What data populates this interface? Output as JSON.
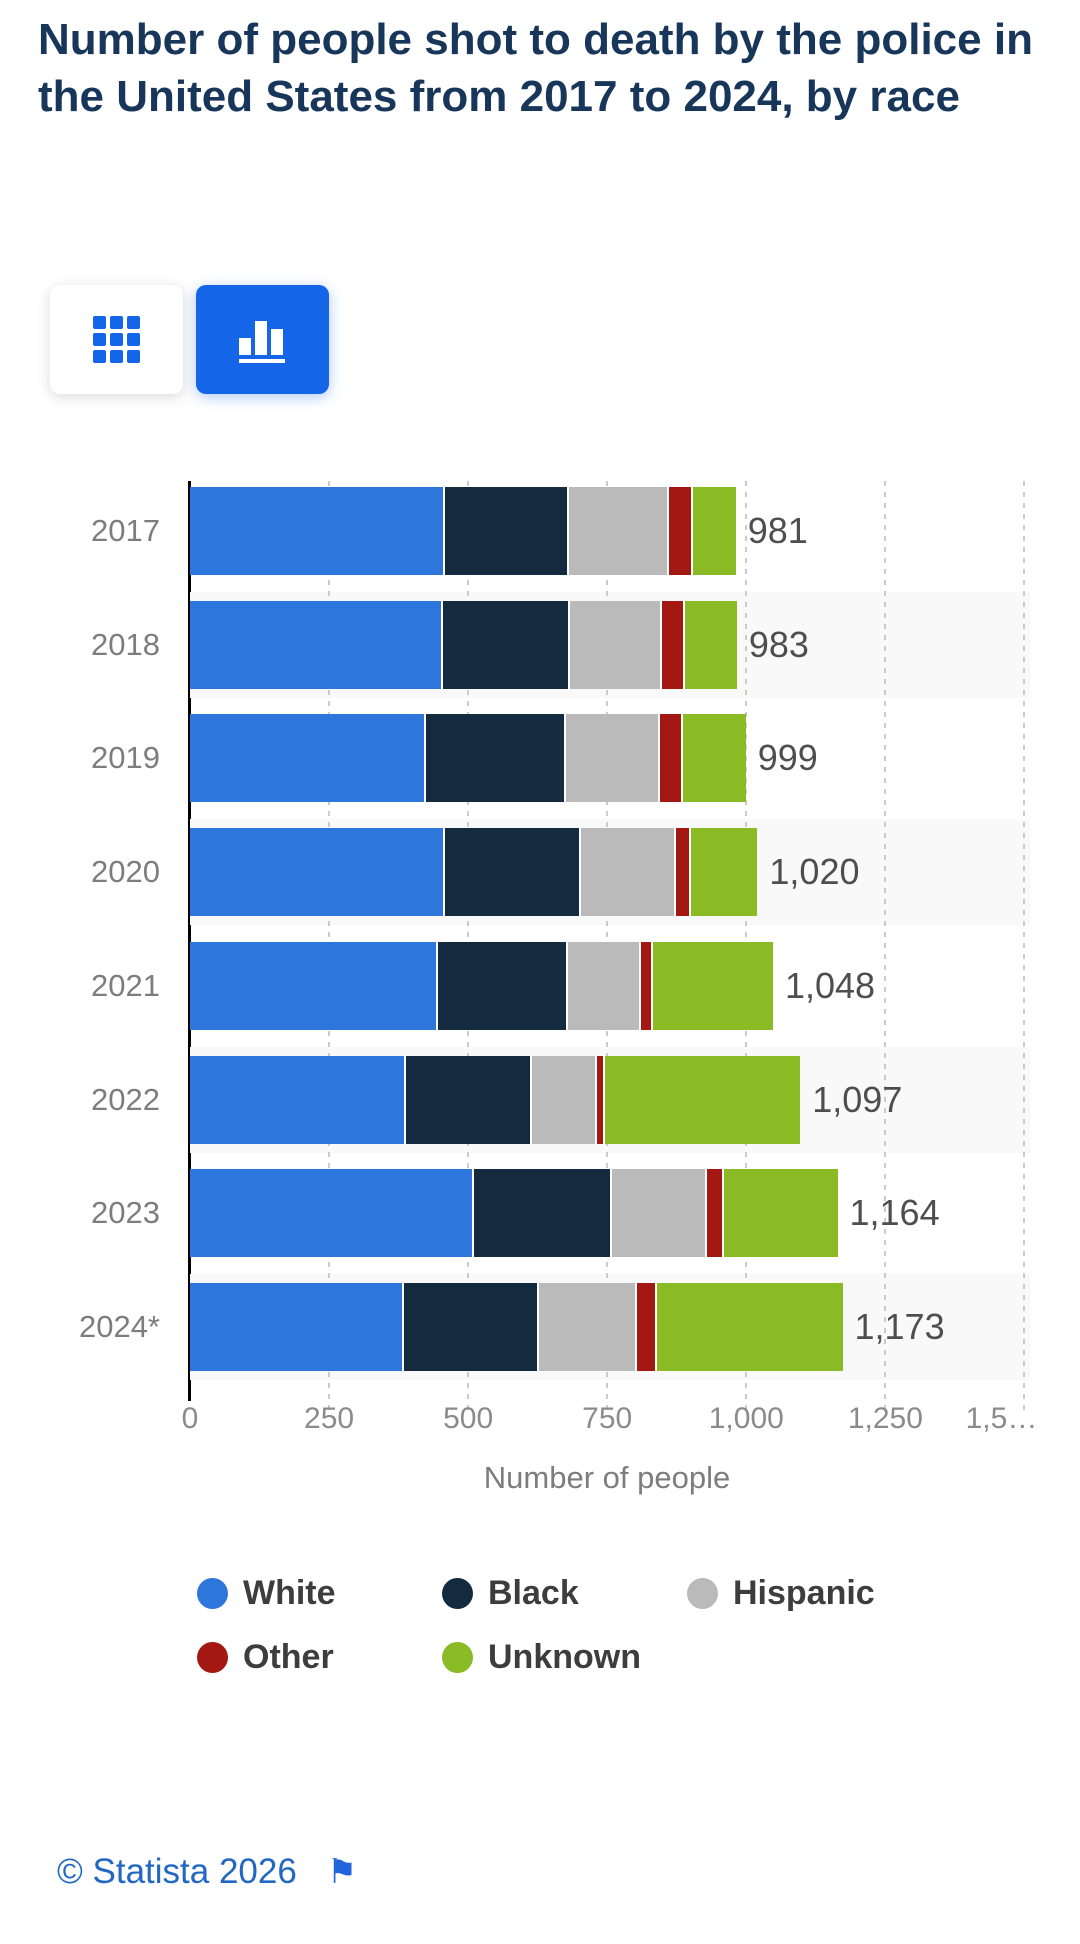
{
  "header": {
    "title": "Number of people shot to death by the police in the United States from 2017 to 2024, by race"
  },
  "toolbar": {
    "table_view_label": "table view",
    "chart_view_label": "chart view",
    "accent_color": "#1465e8",
    "selected": "chart view"
  },
  "chart_data": {
    "type": "bar",
    "orientation": "horizontal",
    "stacked": true,
    "title": "Number of people shot to death by the police in the United States from 2017 to 2024, by race",
    "categories": [
      "2017",
      "2018",
      "2019",
      "2020",
      "2021",
      "2022",
      "2023",
      "2024*"
    ],
    "series": [
      {
        "name": "White",
        "color": "#2d77dc",
        "values": [
          459,
          454,
          424,
          459,
          446,
          389,
          510,
          385
        ]
      },
      {
        "name": "Black",
        "color": "#142a3e",
        "values": [
          223,
          229,
          252,
          244,
          233,
          225,
          249,
          242
        ]
      },
      {
        "name": "Hispanic",
        "color": "#bababa",
        "values": [
          179,
          166,
          169,
          170,
          132,
          117,
          171,
          176
        ]
      },
      {
        "name": "Other",
        "color": "#a41813",
        "values": [
          44,
          41,
          41,
          28,
          22,
          15,
          30,
          36
        ]
      },
      {
        "name": "Unknown",
        "color": "#8abb25",
        "values": [
          76,
          93,
          113,
          119,
          215,
          351,
          204,
          334
        ]
      }
    ],
    "totals_formatted": [
      "981",
      "983",
      "999",
      "1,020",
      "1,048",
      "1,097",
      "1,164",
      "1,173"
    ],
    "xlabel": "Number of people",
    "x_ticks": [
      "0",
      "250",
      "500",
      "750",
      "1,000",
      "1,250",
      "1,5…"
    ],
    "x_tick_values": [
      0,
      250,
      500,
      750,
      1000,
      1250,
      1500
    ],
    "xlim": [
      0,
      1510
    ],
    "gridlines": true,
    "grid_style": "dotted-vertical",
    "row_stripe_color": "#f9f9f9",
    "legend_position": "bottom"
  },
  "footer": {
    "copyright": "© Statista 2026",
    "flag_glyph": "⚑"
  }
}
